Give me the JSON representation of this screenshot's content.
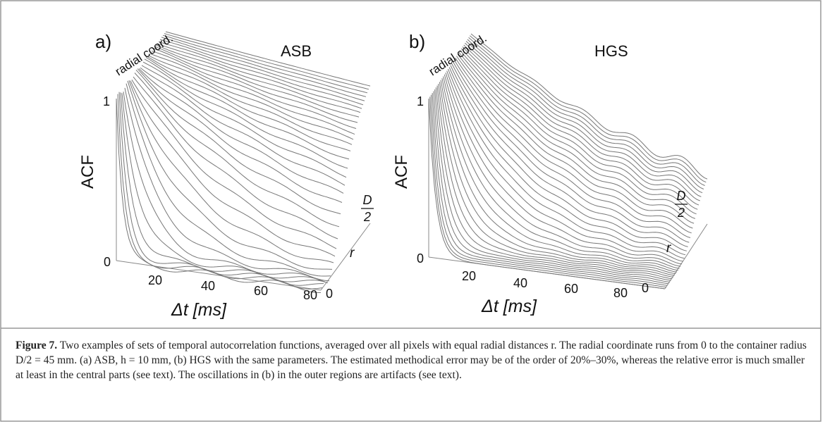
{
  "panels": [
    {
      "label": "a)",
      "title": "ASB",
      "axis_text": "radial coord.",
      "y_label": "ACF",
      "y_top": "1",
      "y_bottom": "0",
      "x_ticks": [
        "20",
        "40",
        "60",
        "80"
      ],
      "x_label": "Δt [ms]",
      "r_label": "r",
      "r_start": "0",
      "r_end_num": "D",
      "r_end_den": "2"
    },
    {
      "label": "b)",
      "title": "HGS",
      "axis_text": "radial coord.",
      "y_label": "ACF",
      "y_top": "1",
      "y_bottom": "0",
      "x_ticks": [
        "20",
        "40",
        "60",
        "80"
      ],
      "x_label": "Δt [ms]",
      "r_label": "r",
      "r_start": "0",
      "r_end_num": "D",
      "r_end_den": "2"
    }
  ],
  "caption": {
    "label": "Figure 7.",
    "text": "Two examples of sets of temporal autocorrelation functions, averaged over all pixels with equal radial distances r. The radial coordinate runs from 0 to the container radius D/2 = 45 mm. (a) ASB, h = 10 mm, (b) HGS with the same parameters. The estimated methodical error may be of the order of 20%–30%, whereas the relative error is much smaller at least in the central parts (see text). The oscillations in (b) in the outer regions are artifacts (see text)."
  }
}
